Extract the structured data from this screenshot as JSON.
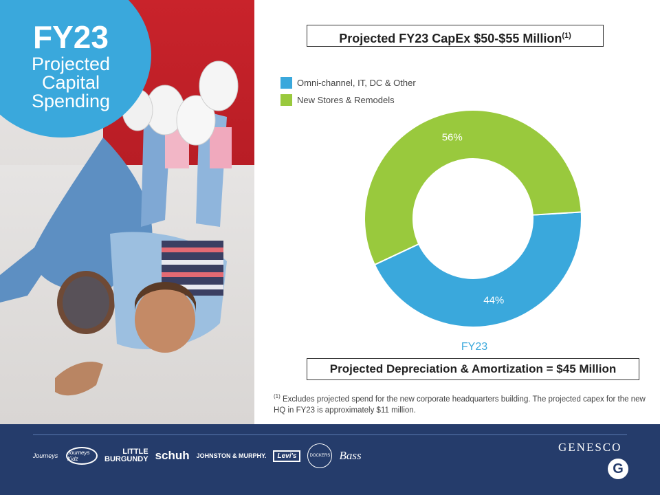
{
  "badge": {
    "title": "FY23",
    "line1": "Projected",
    "line2": "Capital",
    "line3": "Spending"
  },
  "chart_title": {
    "text": "Projected FY23 CapEx $50-$55 Million",
    "superscript": "(1)"
  },
  "colors": {
    "blue": "#3aa8dc",
    "green": "#99c93d",
    "footer": "#253c6b"
  },
  "chart_data": {
    "type": "pie",
    "donut": true,
    "categories": [
      "Omni-channel, IT, DC & Other",
      "New Stores & Remodels"
    ],
    "values": [
      44,
      56
    ],
    "data_labels": [
      "44%",
      "56%"
    ],
    "xlabel": "FY23",
    "legend_position": "top-left"
  },
  "depreciation_box": "Projected Depreciation & Amortization = $45 Million",
  "footnote": {
    "marker": "(1)",
    "text": " Excludes projected spend for the new corporate headquarters building.  The projected capex for the new HQ in FY23 is approximately $11 million."
  },
  "footer": {
    "brands": {
      "journeys": "Journeys",
      "journeys_kidz": "Journeys Kidz",
      "little": "LITTLE",
      "burgundy": "BURGUNDY",
      "schuh": "schuh",
      "johnston": "JOHNSTON & MURPHY.",
      "levis": "Levi's",
      "dockers": "DOCKERS",
      "bass": "Bass"
    },
    "company": "GENESCO",
    "company_mark": "G"
  }
}
